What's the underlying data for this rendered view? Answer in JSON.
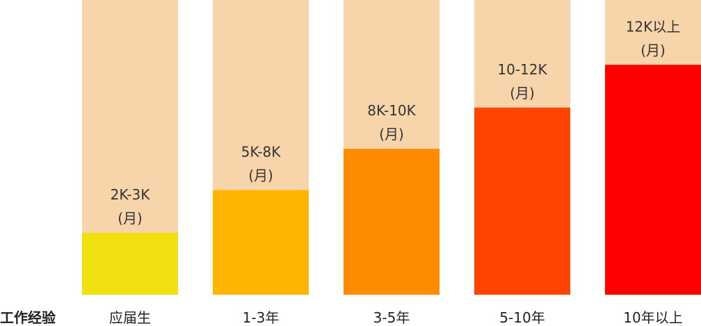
{
  "chart_data": {
    "type": "bar",
    "xlabel": "工作经验",
    "ylabel": "",
    "ylim": [
      0,
      1
    ],
    "grid": false,
    "categories": [
      "应届生",
      "1-3年",
      "3-5年",
      "5-10年",
      "10年以上"
    ],
    "salary_labels": [
      "2K-3K",
      "5K-8K",
      "8K-10K",
      "10-12K",
      "12K以上"
    ],
    "unit_label": "(月)",
    "values": [
      0.21,
      0.355,
      0.495,
      0.635,
      0.78
    ],
    "colors": [
      "#f0e010",
      "#ffb400",
      "#ff8c00",
      "#ff4400",
      "#ff0000"
    ],
    "track_color": "#f8d4aa"
  }
}
